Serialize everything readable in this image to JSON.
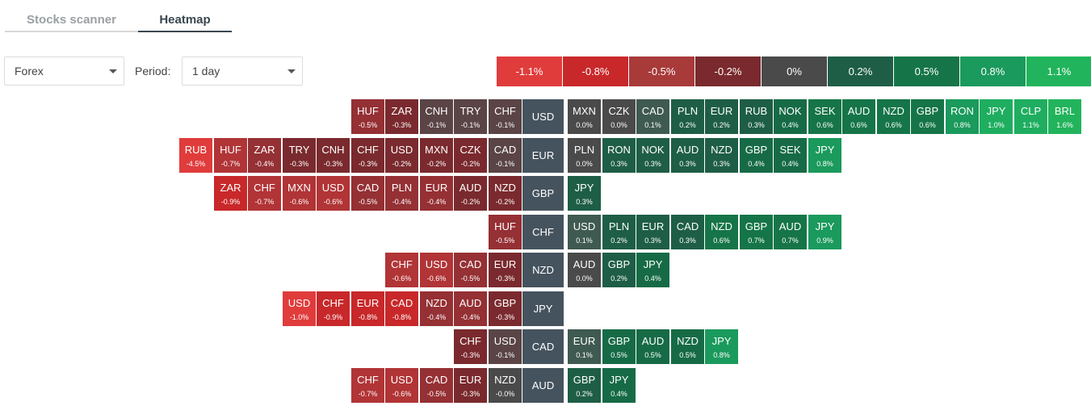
{
  "tabs": [
    {
      "label": "Stocks scanner",
      "active": false
    },
    {
      "label": "Heatmap",
      "active": true
    }
  ],
  "filters": {
    "market_value": "Forex",
    "period_label": "Period:",
    "period_value": "1 day"
  },
  "legend": [
    {
      "label": "-1.1%",
      "color": "#e03c3c"
    },
    {
      "label": "-0.8%",
      "color": "#c8282a"
    },
    {
      "label": "-0.5%",
      "color": "#a83a3a"
    },
    {
      "label": "-0.2%",
      "color": "#7a2a2e"
    },
    {
      "label": "0%",
      "color": "#4a4a4a"
    },
    {
      "label": "0.2%",
      "color": "#1e5e46"
    },
    {
      "label": "0.5%",
      "color": "#157548"
    },
    {
      "label": "0.8%",
      "color": "#1a9a5c"
    },
    {
      "label": "1.1%",
      "color": "#22b45c"
    }
  ],
  "rows": [
    {
      "base": "USD",
      "neg": [
        [
          "HUF",
          "-0.5%"
        ],
        [
          "ZAR",
          "-0.3%"
        ],
        [
          "CNH",
          "-0.1%"
        ],
        [
          "TRY",
          "-0.1%"
        ],
        [
          "CHF",
          "-0.1%"
        ]
      ],
      "pos": [
        [
          "MXN",
          "0.0%"
        ],
        [
          "CZK",
          "0.0%"
        ],
        [
          "CAD",
          "0.1%"
        ],
        [
          "PLN",
          "0.2%"
        ],
        [
          "EUR",
          "0.2%"
        ],
        [
          "RUB",
          "0.3%"
        ],
        [
          "NOK",
          "0.4%"
        ],
        [
          "SEK",
          "0.6%"
        ],
        [
          "AUD",
          "0.6%"
        ],
        [
          "NZD",
          "0.6%"
        ],
        [
          "GBP",
          "0.6%"
        ],
        [
          "RON",
          "0.8%"
        ],
        [
          "JPY",
          "1.0%"
        ],
        [
          "CLP",
          "1.1%"
        ],
        [
          "BRL",
          "1.6%"
        ]
      ]
    },
    {
      "base": "EUR",
      "neg": [
        [
          "RUB",
          "-4.5%"
        ],
        [
          "HUF",
          "-0.7%"
        ],
        [
          "ZAR",
          "-0.4%"
        ],
        [
          "TRY",
          "-0.3%"
        ],
        [
          "CNH",
          "-0.3%"
        ],
        [
          "CHF",
          "-0.3%"
        ],
        [
          "USD",
          "-0.2%"
        ],
        [
          "MXN",
          "-0.2%"
        ],
        [
          "CZK",
          "-0.2%"
        ],
        [
          "CAD",
          "-0.1%"
        ]
      ],
      "pos": [
        [
          "PLN",
          "0.0%"
        ],
        [
          "RON",
          "0.3%"
        ],
        [
          "NOK",
          "0.3%"
        ],
        [
          "AUD",
          "0.3%"
        ],
        [
          "NZD",
          "0.3%"
        ],
        [
          "GBP",
          "0.4%"
        ],
        [
          "SEK",
          "0.4%"
        ],
        [
          "JPY",
          "0.8%"
        ]
      ]
    },
    {
      "base": "GBP",
      "neg": [
        [
          "ZAR",
          "-0.9%"
        ],
        [
          "CHF",
          "-0.7%"
        ],
        [
          "MXN",
          "-0.6%"
        ],
        [
          "USD",
          "-0.6%"
        ],
        [
          "CAD",
          "-0.5%"
        ],
        [
          "PLN",
          "-0.4%"
        ],
        [
          "EUR",
          "-0.4%"
        ],
        [
          "AUD",
          "-0.2%"
        ],
        [
          "NZD",
          "-0.2%"
        ]
      ],
      "pos": [
        [
          "JPY",
          "0.3%"
        ]
      ]
    },
    {
      "base": "CHF",
      "neg": [
        [
          "HUF",
          "-0.5%"
        ]
      ],
      "pos": [
        [
          "USD",
          "0.1%"
        ],
        [
          "PLN",
          "0.2%"
        ],
        [
          "EUR",
          "0.3%"
        ],
        [
          "CAD",
          "0.3%"
        ],
        [
          "NZD",
          "0.6%"
        ],
        [
          "GBP",
          "0.7%"
        ],
        [
          "AUD",
          "0.7%"
        ],
        [
          "JPY",
          "0.9%"
        ]
      ]
    },
    {
      "base": "NZD",
      "neg": [
        [
          "CHF",
          "-0.6%"
        ],
        [
          "USD",
          "-0.6%"
        ],
        [
          "CAD",
          "-0.5%"
        ],
        [
          "EUR",
          "-0.3%"
        ]
      ],
      "pos": [
        [
          "AUD",
          "0.0%"
        ],
        [
          "GBP",
          "0.2%"
        ],
        [
          "JPY",
          "0.4%"
        ]
      ]
    },
    {
      "base": "JPY",
      "neg": [
        [
          "USD",
          "-1.0%"
        ],
        [
          "CHF",
          "-0.9%"
        ],
        [
          "EUR",
          "-0.8%"
        ],
        [
          "CAD",
          "-0.8%"
        ],
        [
          "NZD",
          "-0.4%"
        ],
        [
          "AUD",
          "-0.4%"
        ],
        [
          "GBP",
          "-0.3%"
        ]
      ],
      "pos": []
    },
    {
      "base": "CAD",
      "neg": [
        [
          "CHF",
          "-0.3%"
        ],
        [
          "USD",
          "-0.1%"
        ]
      ],
      "pos": [
        [
          "EUR",
          "0.1%"
        ],
        [
          "GBP",
          "0.5%"
        ],
        [
          "AUD",
          "0.5%"
        ],
        [
          "NZD",
          "0.5%"
        ],
        [
          "JPY",
          "0.8%"
        ]
      ]
    },
    {
      "base": "AUD",
      "neg": [
        [
          "CHF",
          "-0.7%"
        ],
        [
          "USD",
          "-0.6%"
        ],
        [
          "CAD",
          "-0.5%"
        ],
        [
          "EUR",
          "-0.3%"
        ],
        [
          "NZD",
          "-0.0%"
        ]
      ],
      "pos": [
        [
          "GBP",
          "0.2%"
        ],
        [
          "JPY",
          "0.4%"
        ]
      ]
    }
  ]
}
